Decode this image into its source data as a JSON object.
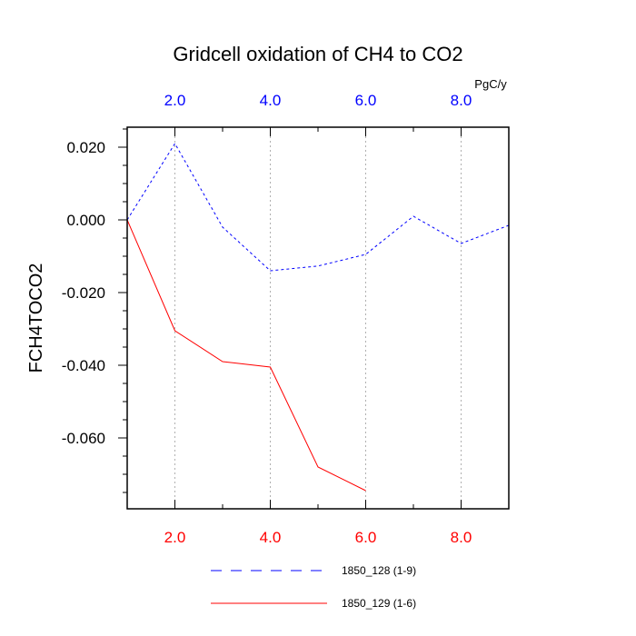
{
  "chart_data": {
    "type": "line",
    "title": "Gridcell oxidation of CH4 to CO2",
    "ylabel": "FCH4TOCO2",
    "units_label": "PgC/y",
    "xlim": [
      1,
      9
    ],
    "ylim": [
      -0.0795,
      0.0255
    ],
    "top_axis": {
      "color": "#0000ff",
      "ticks": [
        2,
        4,
        6,
        8
      ],
      "tick_labels": [
        "2.0",
        "4.0",
        "6.0",
        "8.0"
      ]
    },
    "bottom_axis": {
      "color": "#ff0000",
      "ticks": [
        2,
        4,
        6,
        8
      ],
      "tick_labels": [
        "2.0",
        "4.0",
        "6.0",
        "8.0"
      ]
    },
    "y_axis": {
      "ticks": [
        0.02,
        0.0,
        -0.02,
        -0.04,
        -0.06
      ],
      "tick_labels": [
        "0.020",
        "0.000",
        "-0.020",
        "-0.040",
        "-0.060"
      ],
      "minor_step": 0.005
    },
    "series": [
      {
        "name": "1850_128 (1-9)",
        "color": "#0000ff",
        "dash": "dashed",
        "x": [
          1,
          2,
          3,
          4,
          5,
          6,
          7,
          8,
          9
        ],
        "values": [
          0.0,
          0.021,
          -0.002,
          -0.014,
          -0.0127,
          -0.0095,
          0.001,
          -0.0065,
          -0.0015
        ]
      },
      {
        "name": "1850_129 (1-6)",
        "color": "#ff0000",
        "dash": "solid",
        "x": [
          1,
          2,
          3,
          4,
          5,
          6
        ],
        "values": [
          0.0,
          -0.0305,
          -0.039,
          -0.0405,
          -0.068,
          -0.0745
        ]
      }
    ],
    "legend": {
      "position": "bottom-center"
    }
  }
}
